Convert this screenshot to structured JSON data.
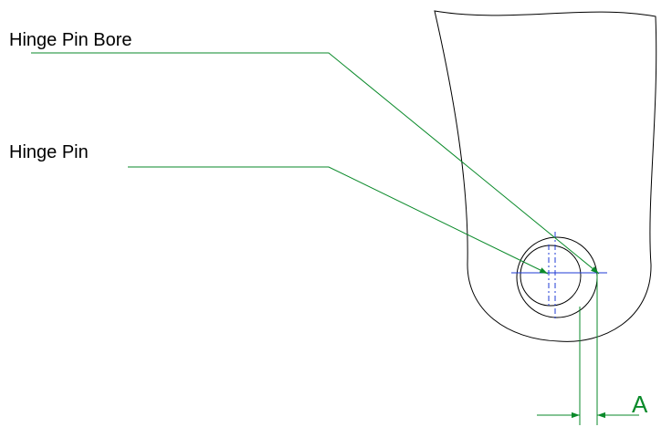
{
  "labels": {
    "hinge_pin_bore": "Hinge Pin Bore",
    "hinge_pin": "Hinge Pin",
    "clearance": "A"
  },
  "colors": {
    "outline": "#000000",
    "leader": "#0a8a2a",
    "arrow_fill": "#0a8a2a",
    "centerline": "#1f3bd6",
    "dimension_text": "#0a8a2a",
    "background": "#ffffff"
  }
}
